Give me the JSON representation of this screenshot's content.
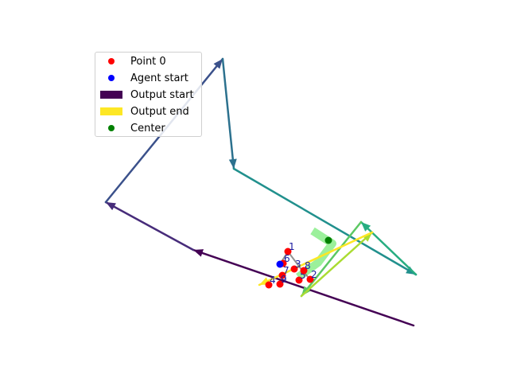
{
  "chart_data": {
    "type": "line",
    "title": "",
    "xlabel": "",
    "ylabel": "",
    "axes_visible": false,
    "grid": false,
    "legend_placement": "upper-left",
    "legend": [
      {
        "label": "Point 0",
        "marker": "dot",
        "color": "#ff0000"
      },
      {
        "label": "Agent start",
        "marker": "dot",
        "color": "#0000ff"
      },
      {
        "label": "Output start",
        "marker": "bar",
        "color": "#440154"
      },
      {
        "label": "Output end",
        "marker": "bar",
        "color": "#fde725"
      },
      {
        "label": "Center",
        "marker": "dot",
        "color": "#008000"
      }
    ],
    "trajectory": {
      "colormap": "viridis",
      "points": [
        [
          520,
          409
        ],
        [
          243,
          314
        ],
        [
          133,
          254
        ],
        [
          280,
          74
        ],
        [
          294,
          212
        ],
        [
          523,
          345
        ],
        [
          454,
          279
        ],
        [
          379,
          372
        ],
        [
          468,
          292
        ],
        [
          326,
          358
        ]
      ]
    },
    "highlight_path": {
      "color": "#90ee90",
      "points": [
        [
          393,
          290
        ],
        [
          418,
          306
        ],
        [
          400,
          330
        ],
        [
          375,
          348
        ]
      ]
    },
    "agent_path": {
      "color": "#777777",
      "points": [
        [
          352,
          332
        ],
        [
          362,
          316
        ],
        [
          380,
          340
        ],
        [
          390,
          351
        ]
      ]
    },
    "points": [
      {
        "label": "1",
        "x": 362,
        "y": 316
      },
      {
        "label": "2",
        "x": 390,
        "y": 351
      },
      {
        "label": "3",
        "x": 370,
        "y": 338
      },
      {
        "label": "4",
        "x": 338,
        "y": 358
      },
      {
        "label": "5",
        "x": 376,
        "y": 352
      },
      {
        "label": "6",
        "x": 356,
        "y": 331
      },
      {
        "label": "7",
        "x": 355,
        "y": 346
      },
      {
        "label": "8",
        "x": 382,
        "y": 340
      },
      {
        "label": "9",
        "x": 352,
        "y": 357
      }
    ],
    "agent_start": {
      "x": 352,
      "y": 332
    },
    "center": {
      "x": 413,
      "y": 302
    }
  }
}
